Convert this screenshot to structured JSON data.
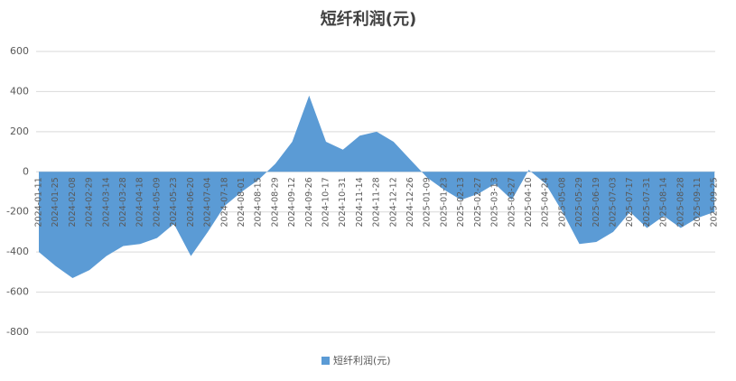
{
  "chart_data": {
    "type": "area",
    "title": "短纤利润(元)",
    "categories": [
      "2024-01-11",
      "2024-01-25",
      "2024-02-08",
      "2024-02-29",
      "2024-03-14",
      "2024-03-28",
      "2024-04-18",
      "2024-05-09",
      "2024-05-23",
      "2024-06-20",
      "2024-07-04",
      "2024-07-18",
      "2024-08-01",
      "2024-08-15",
      "2024-08-29",
      "2024-09-12",
      "2024-09-26",
      "2024-10-17",
      "2024-10-31",
      "2024-11-14",
      "2024-11-28",
      "2024-12-12",
      "2024-12-26",
      "2025-01-09",
      "2025-01-23",
      "2025-02-13",
      "2025-02-27",
      "2025-03-13",
      "2025-03-27",
      "2025-04-10",
      "2025-04-24",
      "2025-05-08",
      "2025-05-29",
      "2025-06-19",
      "2025-07-03",
      "2025-07-17",
      "2025-07-31",
      "2025-08-14",
      "2025-08-28",
      "2025-09-11",
      "2025-09-25"
    ],
    "series": [
      {
        "name": "短纤利润(元)",
        "color": "#5b9bd5",
        "values": [
          -400,
          -470,
          -530,
          -490,
          -420,
          -370,
          -360,
          -330,
          -260,
          -420,
          -300,
          -170,
          -100,
          -40,
          40,
          150,
          380,
          150,
          110,
          180,
          200,
          150,
          60,
          -30,
          -90,
          -140,
          -110,
          -60,
          -140,
          10,
          -60,
          -200,
          -360,
          -350,
          -300,
          -200,
          -280,
          -220,
          -280,
          -230,
          -200
        ]
      }
    ],
    "ylim": [
      -800,
      600
    ],
    "yticks": [
      -800,
      -600,
      -400,
      -200,
      0,
      200,
      400,
      600
    ],
    "grid": true,
    "legend": "bottom"
  }
}
